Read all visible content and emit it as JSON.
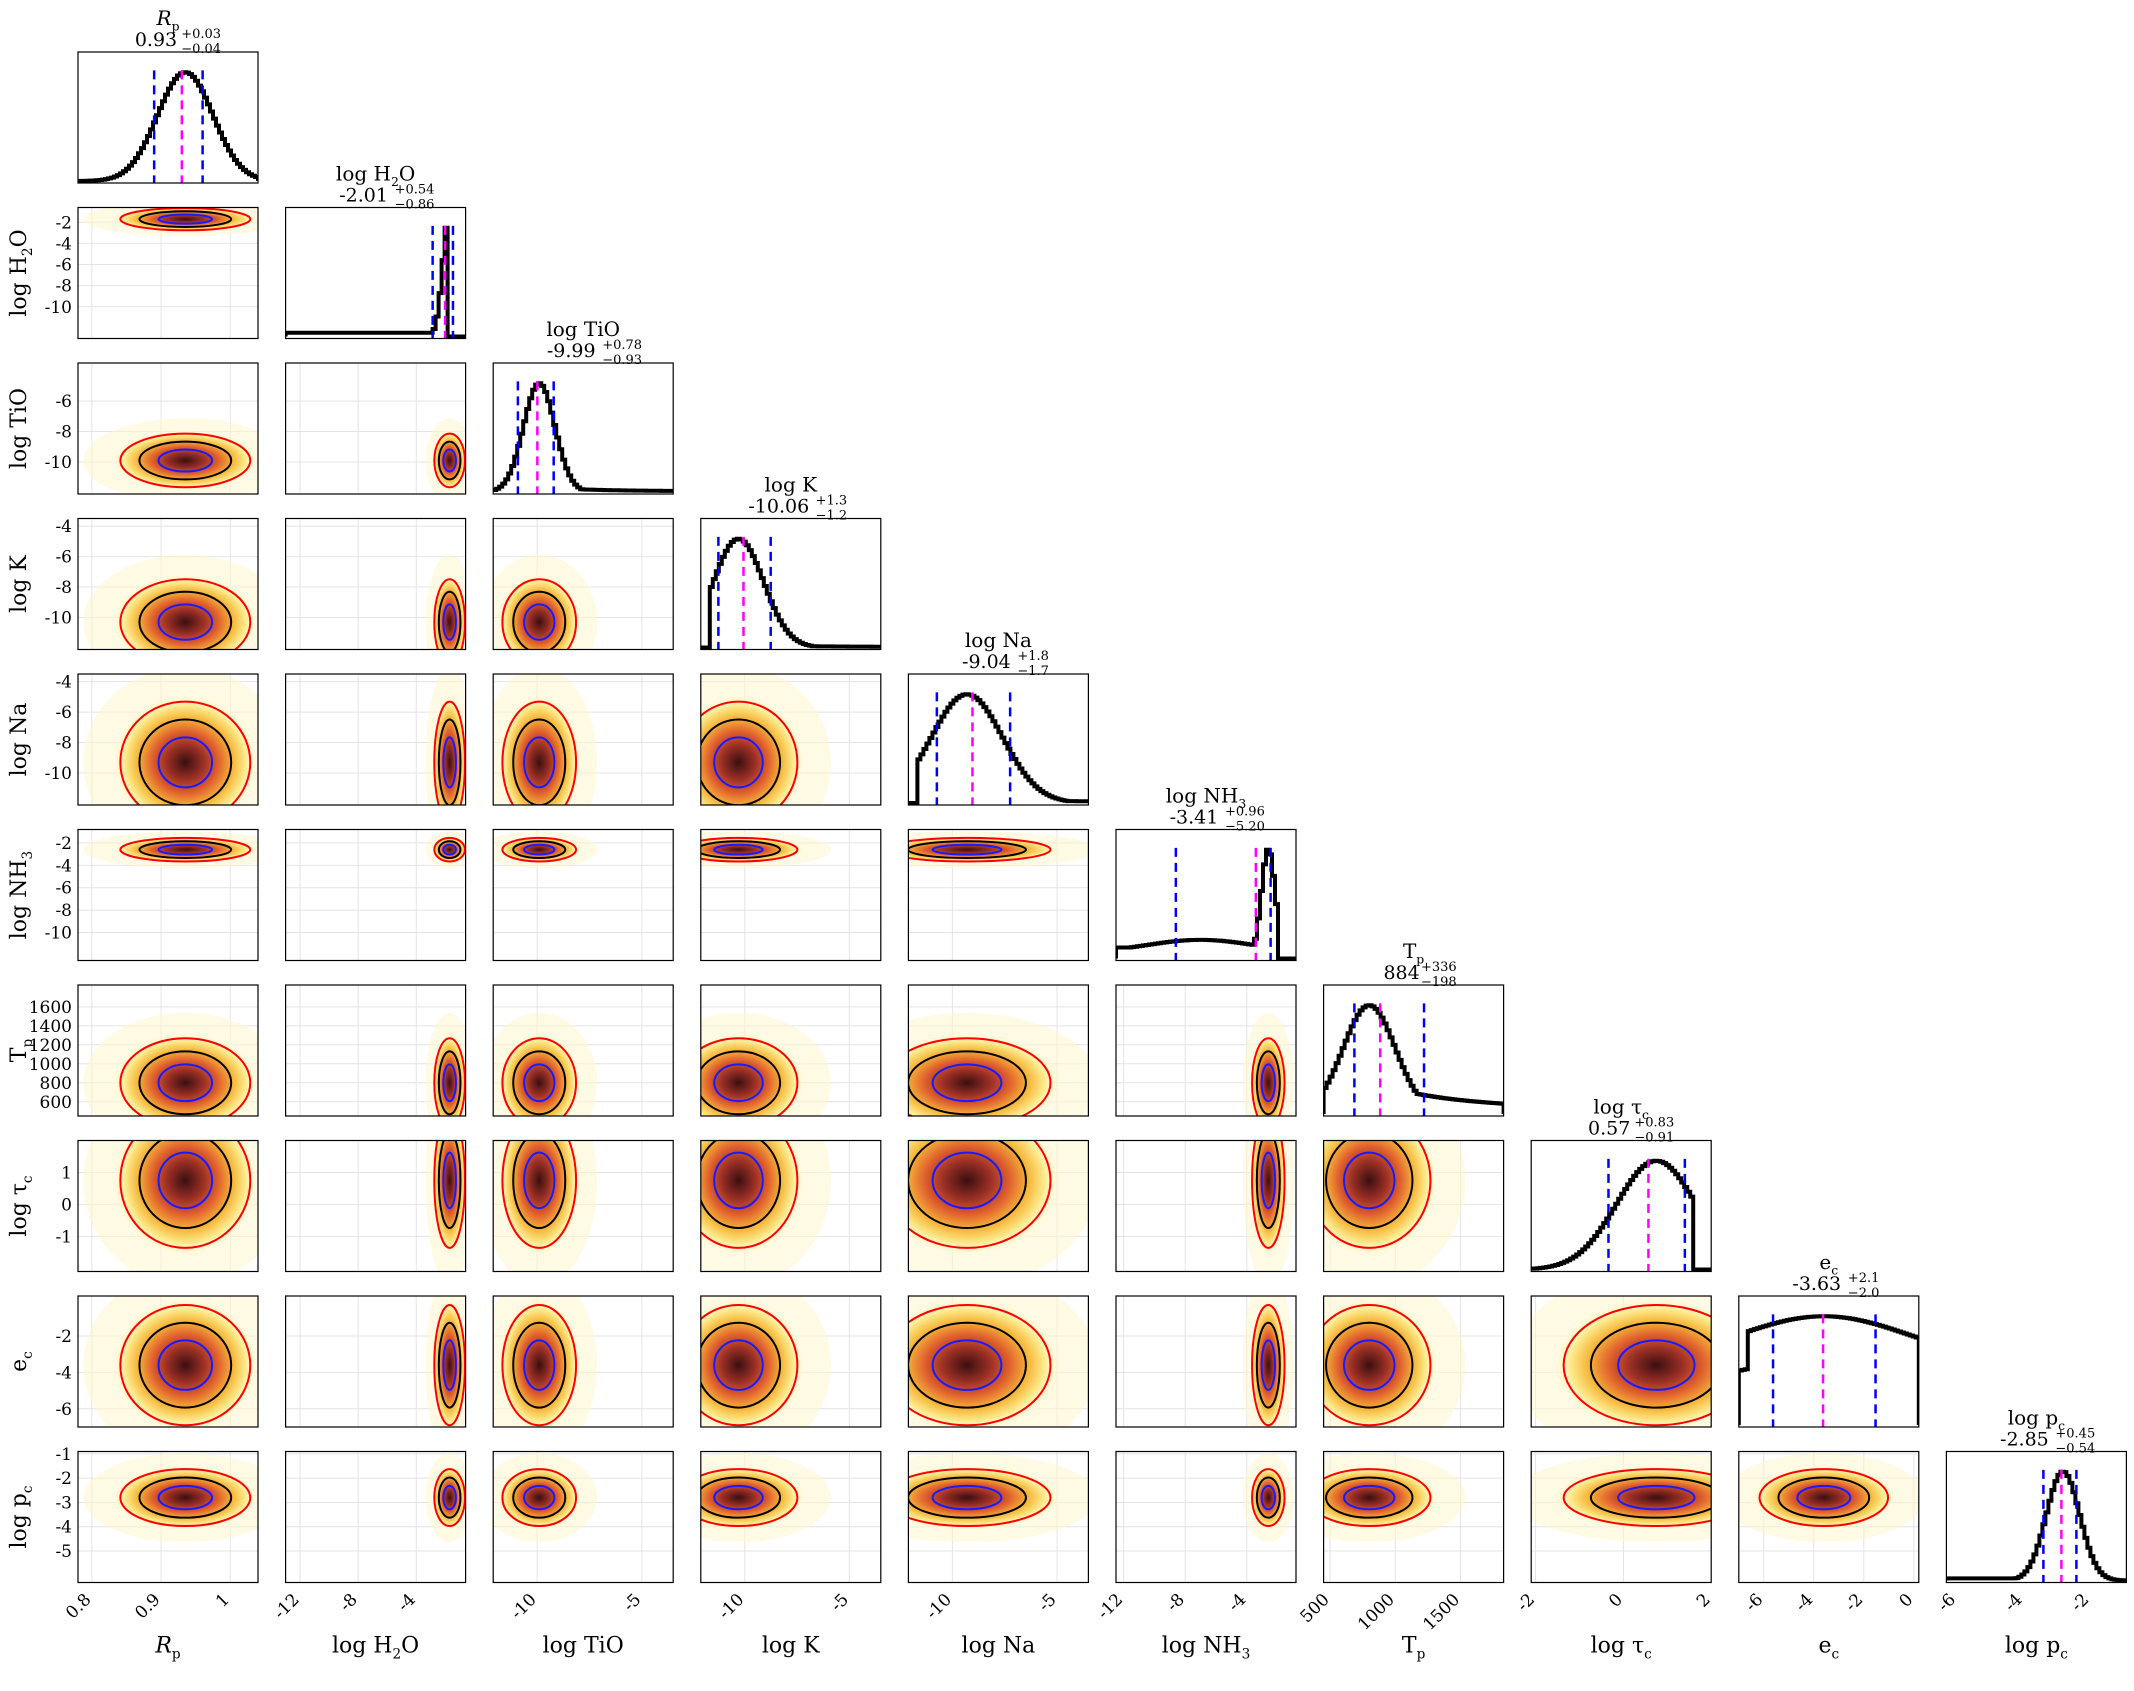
{
  "chart_data": {
    "type": "corner",
    "params": [
      {
        "key": "Rp",
        "label": "R",
        "label_sub": "p",
        "label_italic": true,
        "title_value": "0.93",
        "title_plus": "+0.03",
        "title_minus": "−0.04",
        "range": [
          0.78,
          1.04
        ],
        "ticks": [
          0.8,
          0.9,
          1
        ],
        "tick_labels": [
          "0.8",
          "0.9",
          "1"
        ],
        "median": 0.93,
        "lo": 0.89,
        "hi": 0.96,
        "mode": 0.935,
        "sd": 0.04,
        "floor": 0.0,
        "tail": 0.0,
        "edge": ""
      },
      {
        "key": "H2O",
        "label": "log H",
        "label_sub": "2",
        "label_tail": "O",
        "title_value": "-2.01",
        "title_plus": "+0.54",
        "title_minus": "−0.86",
        "range": [
          -13,
          -0.6
        ],
        "ticks": [
          -12,
          -8,
          -4
        ],
        "tick_labels": [
          "-12",
          "-8",
          "-4"
        ],
        "ticks_y": [
          -2,
          -4,
          -6,
          -8,
          -10
        ],
        "tick_labels_y": [
          "-2",
          "-4",
          "-6",
          "-8",
          "-10"
        ],
        "median": -2.01,
        "lo": -2.87,
        "hi": -1.47,
        "mode": -1.7,
        "sd": 0.45,
        "floor": 0.03,
        "tail": 0.0,
        "edge": "right"
      },
      {
        "key": "TiO",
        "label": "log TiO",
        "title_value": "-9.99",
        "title_plus": "+0.78",
        "title_minus": "−0.93",
        "range": [
          -12.1,
          -3.5
        ],
        "ticks": [
          -10,
          -5
        ],
        "tick_labels": [
          "-10",
          "-5"
        ],
        "ticks_y": [
          -6,
          -8,
          -10
        ],
        "tick_labels_y": [
          "-6",
          "-8",
          "-10"
        ],
        "median": -9.99,
        "lo": -10.92,
        "hi": -9.21,
        "mode": -9.9,
        "sd": 0.75,
        "floor": 0.0,
        "tail": 0.04,
        "edge": ""
      },
      {
        "key": "K",
        "label": "log K",
        "title_value": "-10.06",
        "title_plus": "+1.3",
        "title_minus": "−1.2",
        "range": [
          -12.1,
          -3.5
        ],
        "ticks": [
          -10,
          -5
        ],
        "tick_labels": [
          "-10",
          "-5"
        ],
        "ticks_y": [
          -4,
          -6,
          -8,
          -10
        ],
        "tick_labels_y": [
          "-4",
          "-6",
          "-8",
          "-10"
        ],
        "median": -10.06,
        "lo": -11.26,
        "hi": -8.76,
        "mode": -10.3,
        "sd": 1.2,
        "floor": 0.0,
        "tail": 0.02,
        "edge": "left"
      },
      {
        "key": "Na",
        "label": "log Na",
        "title_value": "-9.04",
        "title_plus": "+1.8",
        "title_minus": "−1.7",
        "range": [
          -12.1,
          -3.5
        ],
        "ticks": [
          -10,
          -5
        ],
        "tick_labels": [
          "-10",
          "-5"
        ],
        "ticks_y": [
          -4,
          -6,
          -8,
          -10
        ],
        "tick_labels_y": [
          "-4",
          "-6",
          "-8",
          "-10"
        ],
        "median": -9.04,
        "lo": -10.74,
        "hi": -7.24,
        "mode": -9.3,
        "sd": 1.7,
        "floor": 0.0,
        "tail": 0.03,
        "edge": "left"
      },
      {
        "key": "NH3",
        "label": "log NH",
        "label_sub": "3",
        "title_value": "-3.41",
        "title_plus": "+0.96",
        "title_minus": "−5.20",
        "range": [
          -12.5,
          -0.8
        ],
        "ticks": [
          -12,
          -8,
          -4
        ],
        "tick_labels": [
          "-12",
          "-8",
          "-4"
        ],
        "ticks_y": [
          -2,
          -4,
          -6,
          -8,
          -10
        ],
        "tick_labels_y": [
          "-2",
          "-4",
          "-6",
          "-8",
          "-10"
        ],
        "median": -3.41,
        "lo": -8.61,
        "hi": -2.45,
        "mode": -2.6,
        "sd": 0.45,
        "floor": 0.1,
        "tail": 0.0,
        "edge": "right"
      },
      {
        "key": "Tp",
        "label": "T",
        "label_sub": "p",
        "title_value": "884",
        "title_plus": "+336",
        "title_minus": "−198",
        "range": [
          450,
          1830
        ],
        "ticks": [
          500,
          1000,
          1500
        ],
        "tick_labels": [
          "500",
          "1000",
          "1500"
        ],
        "ticks_y": [
          600,
          800,
          1000,
          1200,
          1400,
          1600
        ],
        "tick_labels_y": [
          "600",
          "800",
          "1000",
          "1200",
          "1400",
          "1600"
        ],
        "median": 884,
        "lo": 686,
        "hi": 1220,
        "mode": 800,
        "sd": 200,
        "floor": 0.0,
        "tail": 0.25,
        "edge": ""
      },
      {
        "key": "tauc",
        "label": "log τ",
        "label_sub": "c",
        "title_value": "0.57",
        "title_plus": "+0.83",
        "title_minus": "−0.91",
        "range": [
          -2.1,
          2.0
        ],
        "ticks": [
          -2,
          0,
          2
        ],
        "tick_labels": [
          "-2",
          "0",
          "2"
        ],
        "ticks_y": [
          1,
          0,
          -1
        ],
        "tick_labels_y": [
          "1",
          "0",
          "-1"
        ],
        "median": 0.57,
        "lo": -0.34,
        "hi": 1.4,
        "mode": 0.75,
        "sd": 0.9,
        "floor": 0.0,
        "tail": 0.0,
        "edge": "right"
      },
      {
        "key": "ec",
        "label": "e",
        "label_sub": "c",
        "title_value": "-3.63",
        "title_plus": "+2.1",
        "title_minus": "−2.0",
        "range": [
          -7.0,
          0.2
        ],
        "ticks": [
          -6,
          -4,
          -2,
          0
        ],
        "tick_labels": [
          "-6",
          "-4",
          "-2",
          "0"
        ],
        "ticks_y": [
          -2,
          -4,
          -6
        ],
        "tick_labels_y": [
          "-2",
          "-4",
          "-6"
        ],
        "median": -3.63,
        "lo": -5.63,
        "hi": -1.53,
        "mode": -3.6,
        "sd": 3.5,
        "floor": 0.0,
        "tail": 0.0,
        "edge": "flat"
      },
      {
        "key": "pc",
        "label": "log p",
        "label_sub": "c",
        "title_value": "-2.85",
        "title_plus": "+0.45",
        "title_minus": "−0.54",
        "range": [
          -6.3,
          -0.9
        ],
        "ticks": [
          -6,
          -4,
          -2
        ],
        "tick_labels": [
          "-6",
          "-4",
          "-2"
        ],
        "ticks_y": [
          -1,
          -2,
          -3,
          -4,
          -5
        ],
        "tick_labels_y": [
          "-1",
          "-2",
          "-3",
          "-4",
          "-5"
        ],
        "median": -2.85,
        "lo": -3.39,
        "hi": -2.4,
        "mode": -2.8,
        "sd": 0.5,
        "floor": 0.02,
        "tail": 0.0,
        "edge": ""
      }
    ],
    "colors": {
      "hist": "#000000",
      "median": "#ff00ff",
      "quantiles": "#0000ff",
      "contour_inner": "#1a1aff",
      "contour_mid": "#000000",
      "contour_outer": "#ff0000",
      "density_low": "#fffbe6",
      "density_mid": "#f2ad2e",
      "density_high": "#3a0f10"
    },
    "grid": true
  }
}
